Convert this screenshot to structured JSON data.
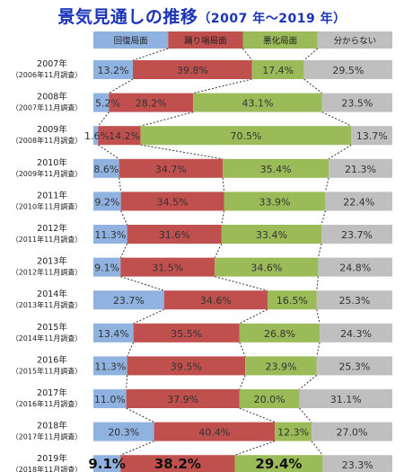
{
  "chart_data": {
    "type": "stacked-bar-100-horizontal",
    "title": "景気見通しの推移",
    "subtitle": "（2007 年～2019 年）",
    "legend_position": "top",
    "series": [
      {
        "name": "回復局面",
        "color": "#8fb2e0"
      },
      {
        "name": "踊り場局面",
        "color": "#c0504d"
      },
      {
        "name": "悪化局面",
        "color": "#9bbb59"
      },
      {
        "name": "分からない",
        "color": "#bfbfbf"
      }
    ],
    "rows": [
      {
        "year": "2007年",
        "survey": "（2006年11月調査）",
        "values": [
          13.2,
          39.8,
          17.4,
          29.5
        ],
        "labels": [
          "13.2%",
          "39.8%",
          "17.4%",
          "29.5%"
        ]
      },
      {
        "year": "2008年",
        "survey": "（2007年11月調査）",
        "values": [
          5.2,
          28.2,
          43.1,
          23.5
        ],
        "labels": [
          "5.2%",
          "28.2%",
          "43.1%",
          "23.5%"
        ]
      },
      {
        "year": "2009年",
        "survey": "（2008年11月調査）",
        "values": [
          1.6,
          14.2,
          70.5,
          13.7
        ],
        "labels": [
          "1.6%",
          "14.2%",
          "70.5%",
          "13.7%"
        ]
      },
      {
        "year": "2010年",
        "survey": "（2009年11月調査）",
        "values": [
          8.6,
          34.7,
          35.4,
          21.3
        ],
        "labels": [
          "8.6%",
          "34.7%",
          "35.4%",
          "21.3%"
        ]
      },
      {
        "year": "2011年",
        "survey": "（2010年11月調査）",
        "values": [
          9.2,
          34.5,
          33.9,
          22.4
        ],
        "labels": [
          "9.2%",
          "34.5%",
          "33.9%",
          "22.4%"
        ]
      },
      {
        "year": "2012年",
        "survey": "（2011年11月調査）",
        "values": [
          11.3,
          31.6,
          33.4,
          23.7
        ],
        "labels": [
          "11.3%",
          "31.6%",
          "33.4%",
          "23.7%"
        ]
      },
      {
        "year": "2013年",
        "survey": "（2012年11月調査）",
        "values": [
          9.1,
          31.5,
          34.6,
          24.8
        ],
        "labels": [
          "9.1%",
          "31.5%",
          "34.6%",
          "24.8%"
        ]
      },
      {
        "year": "2014年",
        "survey": "（2013年11月調査）",
        "values": [
          23.7,
          34.6,
          16.5,
          25.3
        ],
        "labels": [
          "23.7%",
          "34.6%",
          "16.5%",
          "25.3%"
        ]
      },
      {
        "year": "2015年",
        "survey": "（2014年11月調査）",
        "values": [
          13.4,
          35.5,
          26.8,
          24.3
        ],
        "labels": [
          "13.4%",
          "35.5%",
          "26.8%",
          "24.3%"
        ]
      },
      {
        "year": "2016年",
        "survey": "（2015年11月調査）",
        "values": [
          11.3,
          39.5,
          23.9,
          25.3
        ],
        "labels": [
          "11.3%",
          "39.5%",
          "23.9%",
          "25.3%"
        ]
      },
      {
        "year": "2017年",
        "survey": "（2016年11月調査）",
        "values": [
          11.0,
          37.9,
          20.0,
          31.1
        ],
        "labels": [
          "11.0%",
          "37.9%",
          "20.0%",
          "31.1%"
        ]
      },
      {
        "year": "2018年",
        "survey": "（2017年11月調査）",
        "values": [
          20.3,
          40.4,
          12.3,
          27.0
        ],
        "labels": [
          "20.3%",
          "40.4%",
          "12.3%",
          "27.0%"
        ]
      },
      {
        "year": "2019年",
        "survey": "（2018年11月調査）",
        "values": [
          9.1,
          38.2,
          29.4,
          23.3
        ],
        "labels": [
          "9.1%",
          "38.2%",
          "29.4%",
          "23.3%"
        ],
        "emphasis": true
      }
    ],
    "xlim": [
      0,
      100
    ],
    "grid": false
  }
}
